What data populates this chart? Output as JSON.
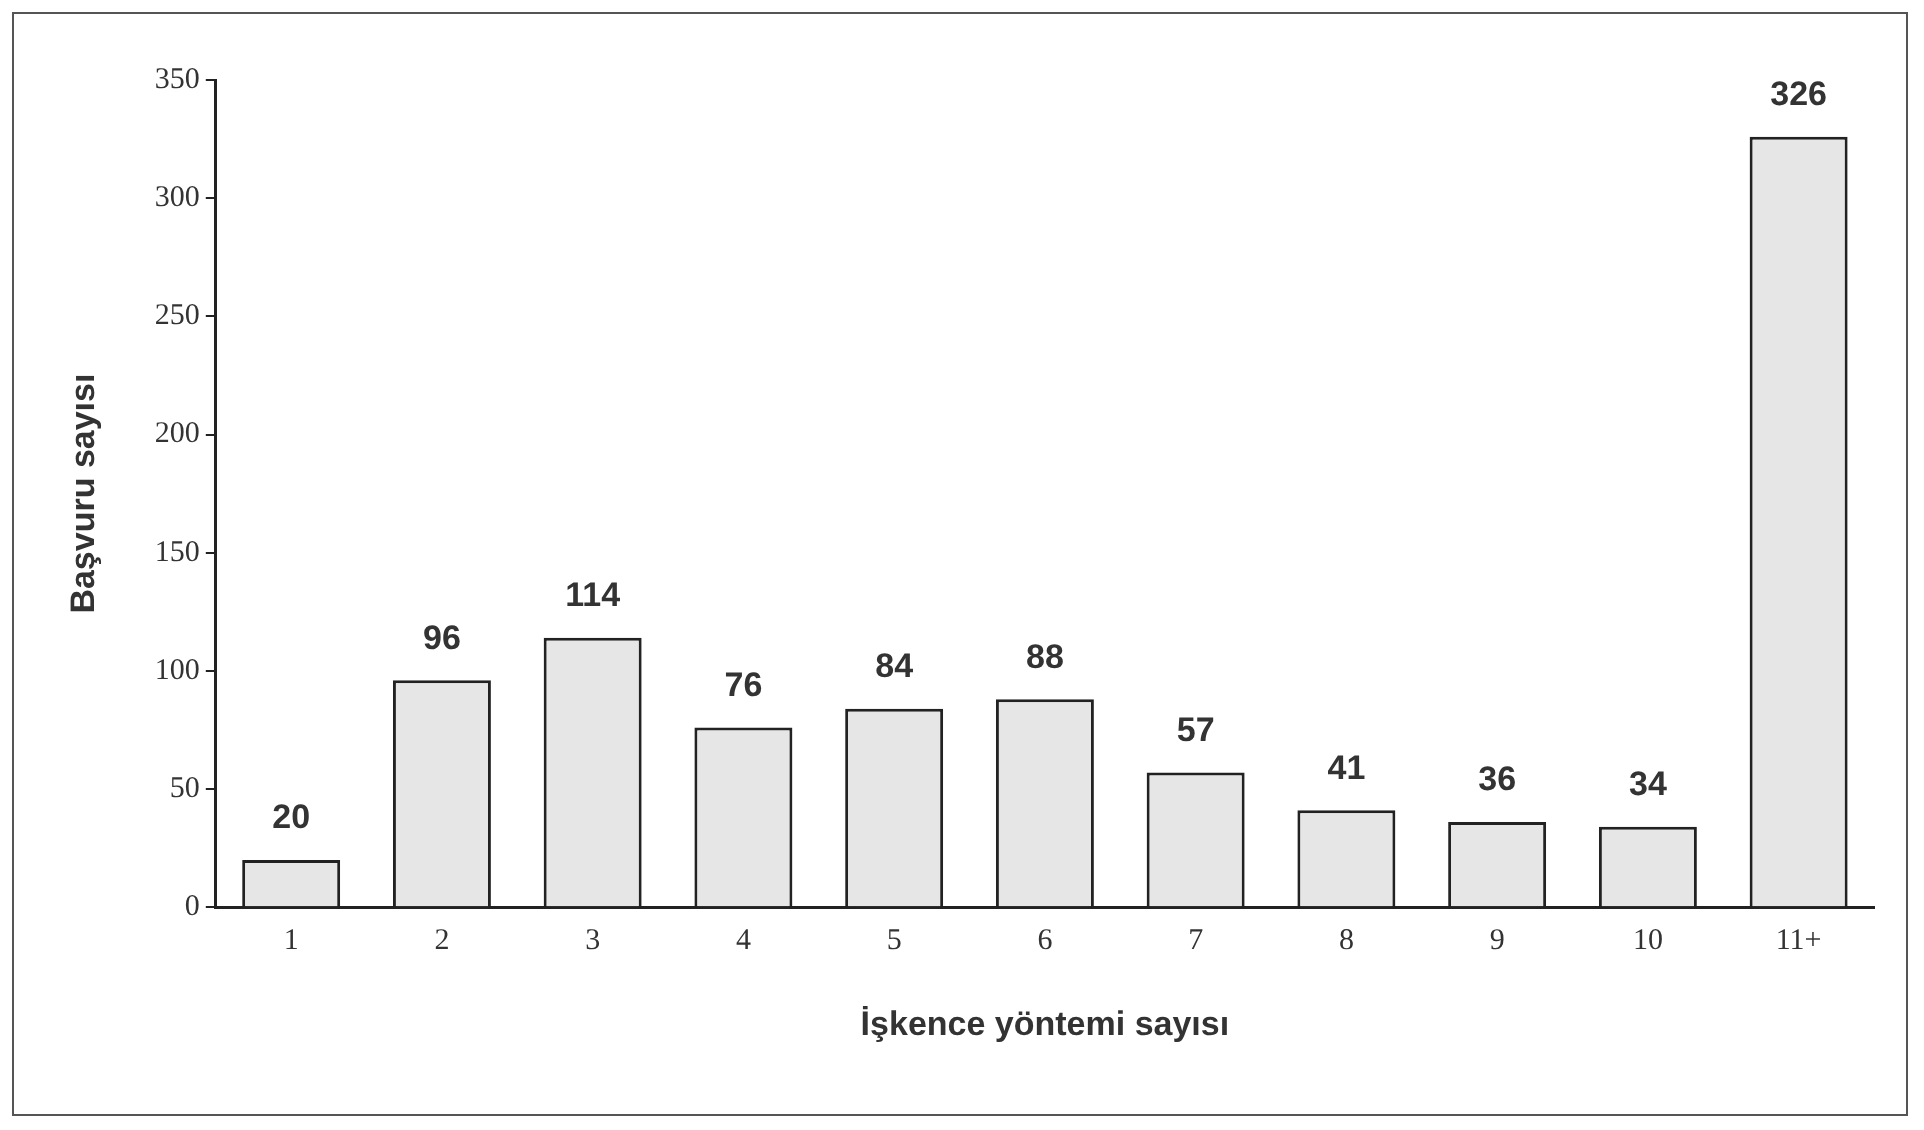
{
  "chart_data": {
    "type": "bar",
    "xlabel": "İşkence yöntemi sayısı",
    "ylabel": "Başvuru sayısı",
    "categories": [
      "1",
      "2",
      "3",
      "4",
      "5",
      "6",
      "7",
      "8",
      "9",
      "10",
      "11+"
    ],
    "values": [
      20,
      96,
      114,
      76,
      84,
      88,
      57,
      41,
      36,
      34,
      326
    ],
    "color": "#e6e6e6",
    "ylim": [
      0,
      350
    ],
    "yticks": [
      0,
      50,
      100,
      150,
      200,
      250,
      300,
      350
    ],
    "grid": false,
    "legend": false,
    "data_labels": true
  }
}
